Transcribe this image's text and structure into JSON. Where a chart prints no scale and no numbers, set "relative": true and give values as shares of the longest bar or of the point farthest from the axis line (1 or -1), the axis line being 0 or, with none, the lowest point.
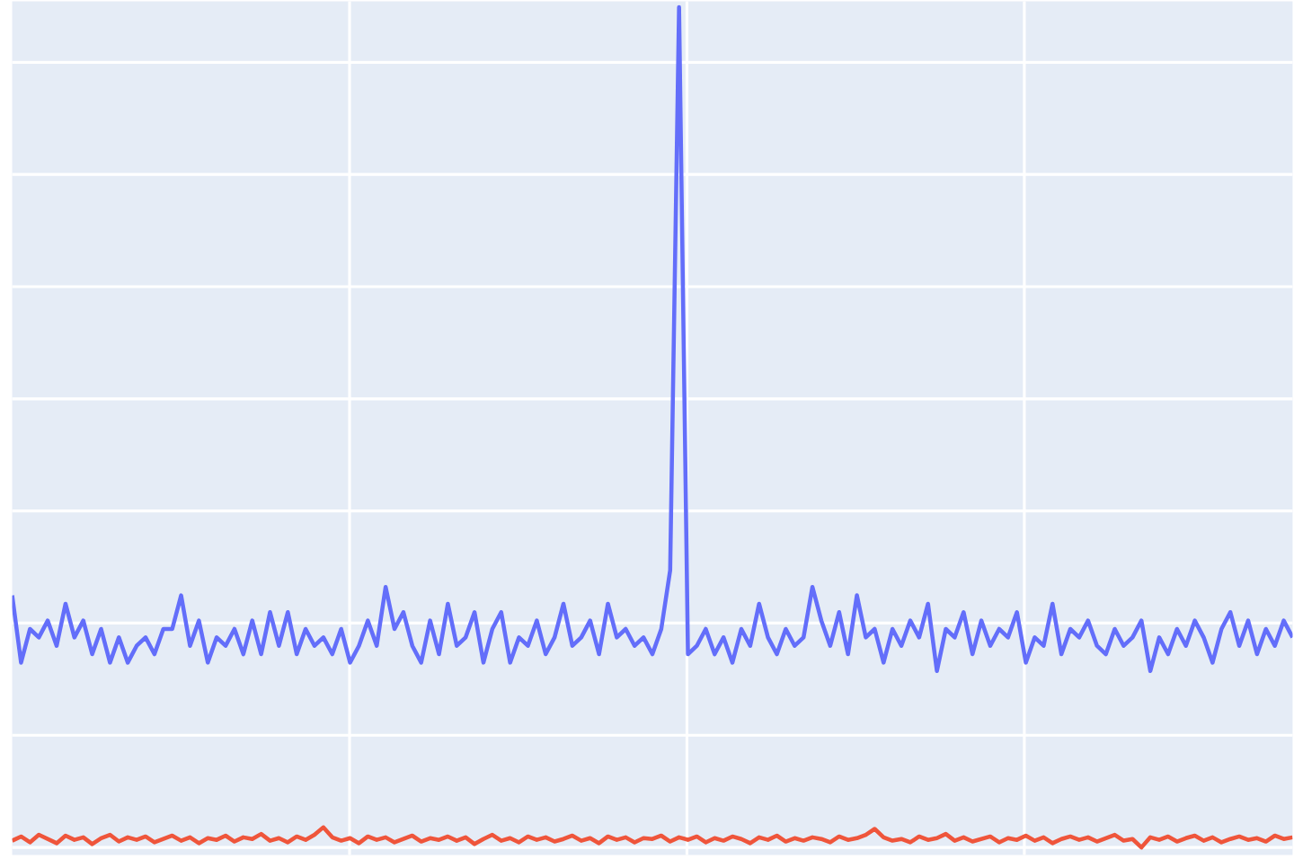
{
  "chart_data": {
    "type": "line",
    "relative": true,
    "grid": true,
    "categories": [
      null,
      null,
      null,
      null,
      null,
      null,
      null,
      null,
      null,
      null,
      null,
      null,
      null,
      null,
      null,
      null,
      null,
      null,
      null,
      null,
      null,
      null,
      null,
      null,
      null,
      null,
      null,
      null,
      null,
      null,
      null,
      null,
      null,
      null,
      null,
      null,
      null,
      null,
      null,
      null,
      null,
      null,
      null,
      null,
      null,
      null,
      null,
      null,
      null,
      null,
      null,
      null,
      null,
      null,
      null,
      null,
      null,
      null,
      null,
      null,
      null,
      null,
      null,
      null,
      null,
      null,
      null,
      null,
      null,
      null,
      null,
      null,
      null,
      null,
      null,
      null,
      null,
      null,
      null,
      null,
      null,
      null,
      null,
      null,
      null,
      null,
      null,
      null,
      null,
      null,
      null,
      null,
      null,
      null,
      null,
      null,
      null,
      null,
      null,
      null,
      null,
      null,
      null,
      null,
      null,
      null,
      null,
      null,
      null,
      null,
      null,
      null,
      null,
      null,
      null,
      null,
      null,
      null,
      null,
      null,
      null,
      null,
      null,
      null,
      null,
      null,
      null,
      null,
      null,
      null,
      null,
      null,
      null,
      null,
      null,
      null,
      null,
      null,
      null,
      null,
      null,
      null,
      null,
      null,
      null
    ],
    "series": [
      {
        "color": "#636efa",
        "values": [
          0.3,
          0.22,
          0.26,
          0.25,
          0.27,
          0.24,
          0.29,
          0.25,
          0.27,
          0.23,
          0.26,
          0.22,
          0.25,
          0.22,
          0.24,
          0.25,
          0.23,
          0.26,
          0.26,
          0.3,
          0.24,
          0.27,
          0.22,
          0.25,
          0.24,
          0.26,
          0.23,
          0.27,
          0.23,
          0.28,
          0.24,
          0.28,
          0.23,
          0.26,
          0.24,
          0.25,
          0.23,
          0.26,
          0.22,
          0.24,
          0.27,
          0.24,
          0.31,
          0.26,
          0.28,
          0.24,
          0.22,
          0.27,
          0.23,
          0.29,
          0.24,
          0.25,
          0.28,
          0.22,
          0.26,
          0.28,
          0.22,
          0.25,
          0.24,
          0.27,
          0.23,
          0.25,
          0.29,
          0.24,
          0.25,
          0.27,
          0.23,
          0.29,
          0.25,
          0.26,
          0.24,
          0.25,
          0.23,
          0.26,
          0.33,
          1.0,
          0.23,
          0.24,
          0.26,
          0.23,
          0.25,
          0.22,
          0.26,
          0.24,
          0.29,
          0.25,
          0.23,
          0.26,
          0.24,
          0.25,
          0.31,
          0.27,
          0.24,
          0.28,
          0.23,
          0.3,
          0.25,
          0.26,
          0.22,
          0.26,
          0.24,
          0.27,
          0.25,
          0.29,
          0.21,
          0.26,
          0.25,
          0.28,
          0.23,
          0.27,
          0.24,
          0.26,
          0.25,
          0.28,
          0.22,
          0.25,
          0.24,
          0.29,
          0.23,
          0.26,
          0.25,
          0.27,
          0.24,
          0.23,
          0.26,
          0.24,
          0.25,
          0.27,
          0.21,
          0.25,
          0.23,
          0.26,
          0.24,
          0.27,
          0.25,
          0.22,
          0.26,
          0.28,
          0.24,
          0.27,
          0.23,
          0.26,
          0.24,
          0.27,
          0.25
        ]
      },
      {
        "color": "#ef553b",
        "values": [
          0.008,
          0.013,
          0.006,
          0.015,
          0.01,
          0.005,
          0.014,
          0.009,
          0.012,
          0.004,
          0.011,
          0.015,
          0.007,
          0.012,
          0.009,
          0.013,
          0.006,
          0.01,
          0.014,
          0.008,
          0.012,
          0.005,
          0.011,
          0.009,
          0.014,
          0.007,
          0.012,
          0.01,
          0.016,
          0.008,
          0.011,
          0.006,
          0.013,
          0.009,
          0.015,
          0.024,
          0.012,
          0.008,
          0.011,
          0.005,
          0.013,
          0.009,
          0.012,
          0.006,
          0.01,
          0.014,
          0.007,
          0.011,
          0.009,
          0.013,
          0.008,
          0.012,
          0.004,
          0.01,
          0.015,
          0.008,
          0.011,
          0.006,
          0.013,
          0.009,
          0.012,
          0.007,
          0.01,
          0.014,
          0.008,
          0.011,
          0.005,
          0.013,
          0.009,
          0.012,
          0.006,
          0.011,
          0.01,
          0.014,
          0.007,
          0.012,
          0.009,
          0.013,
          0.006,
          0.011,
          0.008,
          0.013,
          0.01,
          0.005,
          0.012,
          0.009,
          0.014,
          0.007,
          0.011,
          0.008,
          0.012,
          0.01,
          0.006,
          0.013,
          0.009,
          0.011,
          0.015,
          0.022,
          0.012,
          0.008,
          0.01,
          0.006,
          0.013,
          0.009,
          0.011,
          0.016,
          0.008,
          0.012,
          0.007,
          0.01,
          0.013,
          0.006,
          0.011,
          0.009,
          0.014,
          0.008,
          0.012,
          0.005,
          0.01,
          0.013,
          0.009,
          0.012,
          0.007,
          0.011,
          0.015,
          0.008,
          0.01,
          0.0,
          0.012,
          0.009,
          0.013,
          0.007,
          0.011,
          0.014,
          0.008,
          0.012,
          0.006,
          0.01,
          0.013,
          0.009,
          0.011,
          0.007,
          0.014,
          0.01,
          0.012
        ]
      }
    ]
  }
}
